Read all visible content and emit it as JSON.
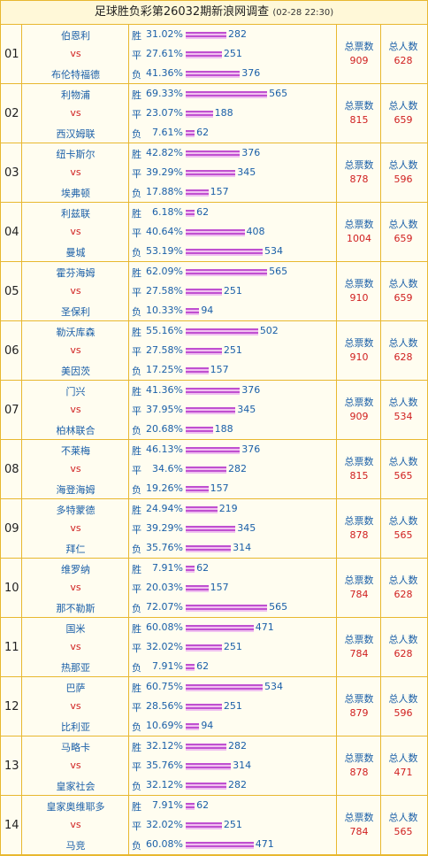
{
  "header": {
    "title": "足球胜负彩第26032期新浪网调查",
    "time": "(02-28 22:30)"
  },
  "labels": {
    "vs": "vs",
    "votes": "总票数",
    "people": "总人数"
  },
  "matches": [
    {
      "no": "01",
      "home": "伯恩利",
      "away": "布伦特福德",
      "lines": [
        {
          "label": "胜",
          "pct": "31.02%",
          "count": 282
        },
        {
          "label": "平",
          "pct": "27.61%",
          "count": 251
        },
        {
          "label": "负",
          "pct": "41.36%",
          "count": 376
        }
      ],
      "votes": 909,
      "people": 628
    },
    {
      "no": "02",
      "home": "利物浦",
      "away": "西汉姆联",
      "lines": [
        {
          "label": "胜",
          "pct": "69.33%",
          "count": 565
        },
        {
          "label": "平",
          "pct": "23.07%",
          "count": 188
        },
        {
          "label": "负",
          "pct": "7.61%",
          "count": 62
        }
      ],
      "votes": 815,
      "people": 659
    },
    {
      "no": "03",
      "home": "纽卡斯尔",
      "away": "埃弗顿",
      "lines": [
        {
          "label": "胜",
          "pct": "42.82%",
          "count": 376
        },
        {
          "label": "平",
          "pct": "39.29%",
          "count": 345
        },
        {
          "label": "负",
          "pct": "17.88%",
          "count": 157
        }
      ],
      "votes": 878,
      "people": 596
    },
    {
      "no": "04",
      "home": "利兹联",
      "away": "曼城",
      "lines": [
        {
          "label": "胜",
          "pct": "6.18%",
          "count": 62
        },
        {
          "label": "平",
          "pct": "40.64%",
          "count": 408
        },
        {
          "label": "负",
          "pct": "53.19%",
          "count": 534
        }
      ],
      "votes": 1004,
      "people": 659
    },
    {
      "no": "05",
      "home": "霍芬海姆",
      "away": "圣保利",
      "lines": [
        {
          "label": "胜",
          "pct": "62.09%",
          "count": 565
        },
        {
          "label": "平",
          "pct": "27.58%",
          "count": 251
        },
        {
          "label": "负",
          "pct": "10.33%",
          "count": 94
        }
      ],
      "votes": 910,
      "people": 659
    },
    {
      "no": "06",
      "home": "勒沃库森",
      "away": "美因茨",
      "lines": [
        {
          "label": "胜",
          "pct": "55.16%",
          "count": 502
        },
        {
          "label": "平",
          "pct": "27.58%",
          "count": 251
        },
        {
          "label": "负",
          "pct": "17.25%",
          "count": 157
        }
      ],
      "votes": 910,
      "people": 628
    },
    {
      "no": "07",
      "home": "门兴",
      "away": "柏林联合",
      "lines": [
        {
          "label": "胜",
          "pct": "41.36%",
          "count": 376
        },
        {
          "label": "平",
          "pct": "37.95%",
          "count": 345
        },
        {
          "label": "负",
          "pct": "20.68%",
          "count": 188
        }
      ],
      "votes": 909,
      "people": 534
    },
    {
      "no": "08",
      "home": "不莱梅",
      "away": "海登海姆",
      "lines": [
        {
          "label": "胜",
          "pct": "46.13%",
          "count": 376
        },
        {
          "label": "平",
          "pct": "34.6%",
          "count": 282
        },
        {
          "label": "负",
          "pct": "19.26%",
          "count": 157
        }
      ],
      "votes": 815,
      "people": 565
    },
    {
      "no": "09",
      "home": "多特蒙德",
      "away": "拜仁",
      "lines": [
        {
          "label": "胜",
          "pct": "24.94%",
          "count": 219
        },
        {
          "label": "平",
          "pct": "39.29%",
          "count": 345
        },
        {
          "label": "负",
          "pct": "35.76%",
          "count": 314
        }
      ],
      "votes": 878,
      "people": 565
    },
    {
      "no": "10",
      "home": "维罗纳",
      "away": "那不勒斯",
      "lines": [
        {
          "label": "胜",
          "pct": "7.91%",
          "count": 62
        },
        {
          "label": "平",
          "pct": "20.03%",
          "count": 157
        },
        {
          "label": "负",
          "pct": "72.07%",
          "count": 565
        }
      ],
      "votes": 784,
      "people": 628
    },
    {
      "no": "11",
      "home": "国米",
      "away": "热那亚",
      "lines": [
        {
          "label": "胜",
          "pct": "60.08%",
          "count": 471
        },
        {
          "label": "平",
          "pct": "32.02%",
          "count": 251
        },
        {
          "label": "负",
          "pct": "7.91%",
          "count": 62
        }
      ],
      "votes": 784,
      "people": 628
    },
    {
      "no": "12",
      "home": "巴萨",
      "away": "比利亚",
      "lines": [
        {
          "label": "胜",
          "pct": "60.75%",
          "count": 534
        },
        {
          "label": "平",
          "pct": "28.56%",
          "count": 251
        },
        {
          "label": "负",
          "pct": "10.69%",
          "count": 94
        }
      ],
      "votes": 879,
      "people": 596
    },
    {
      "no": "13",
      "home": "马略卡",
      "away": "皇家社会",
      "lines": [
        {
          "label": "胜",
          "pct": "32.12%",
          "count": 282
        },
        {
          "label": "平",
          "pct": "35.76%",
          "count": 314
        },
        {
          "label": "负",
          "pct": "32.12%",
          "count": 282
        }
      ],
      "votes": 878,
      "people": 471
    },
    {
      "no": "14",
      "home": "皇家奥维耶多",
      "away": "马竞",
      "lines": [
        {
          "label": "胜",
          "pct": "7.91%",
          "count": 62
        },
        {
          "label": "平",
          "pct": "32.02%",
          "count": 251
        },
        {
          "label": "负",
          "pct": "60.08%",
          "count": 471
        }
      ],
      "votes": 784,
      "people": 565
    }
  ]
}
